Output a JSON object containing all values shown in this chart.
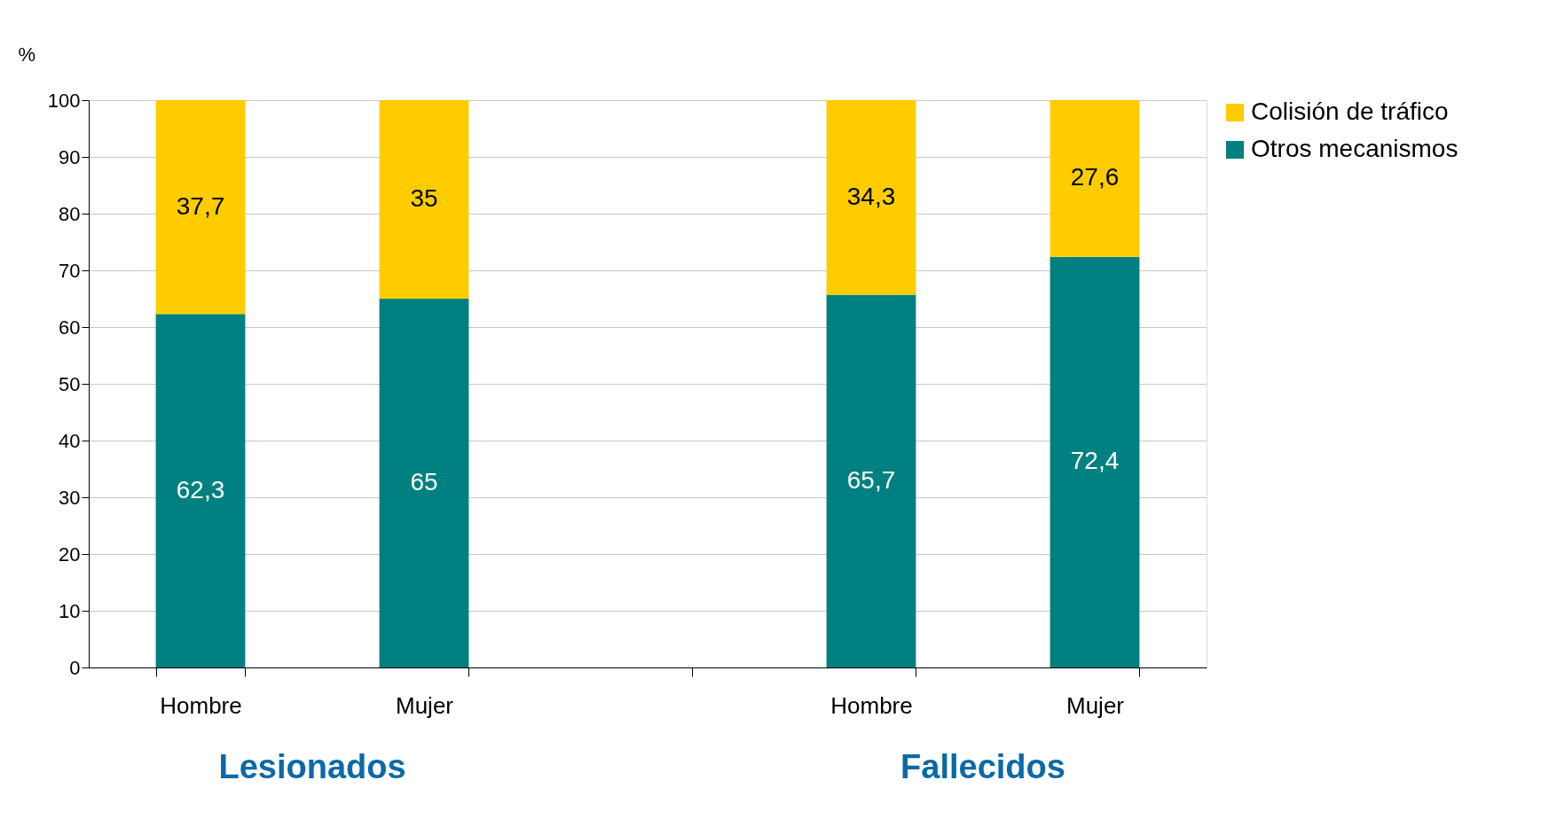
{
  "chart_data": {
    "type": "bar",
    "stacked": true,
    "ylabel": "%",
    "categories": [
      "Hombre",
      "Mujer",
      null,
      "Hombre",
      "Mujer"
    ],
    "series": [
      {
        "name": "Otros mecanismos",
        "color": "#008080",
        "values": [
          62.3,
          65,
          null,
          65.7,
          72.4
        ],
        "value_labels": [
          "62,3",
          "65",
          null,
          "65,7",
          "72,4"
        ]
      },
      {
        "name": "Colisión de tráfico",
        "color": "#ffcc00",
        "values": [
          37.7,
          35,
          null,
          34.3,
          27.6
        ],
        "value_labels": [
          "37,7",
          "35",
          null,
          "34,3",
          "27,6"
        ]
      }
    ],
    "ylim": [
      0,
      100
    ],
    "yticks": [
      0,
      10,
      20,
      30,
      40,
      50,
      60,
      70,
      80,
      90,
      100
    ],
    "grid": "y",
    "legend": "right",
    "annotations": [
      "Lesionados",
      "Fallecidos"
    ]
  }
}
